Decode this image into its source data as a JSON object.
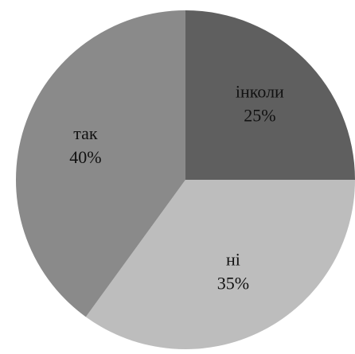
{
  "chart_data": {
    "type": "pie",
    "title": "",
    "start": "top-center",
    "direction": "clockwise",
    "legend": "none",
    "slices": [
      {
        "label": "інколи",
        "value": 25,
        "value_label": "25%",
        "color": "#5f5f5f"
      },
      {
        "label": "ні",
        "value": 35,
        "value_label": "35%",
        "color": "#bdbdbd"
      },
      {
        "label": "так",
        "value": 40,
        "value_label": "40%",
        "color": "#8a8a8a"
      }
    ]
  }
}
